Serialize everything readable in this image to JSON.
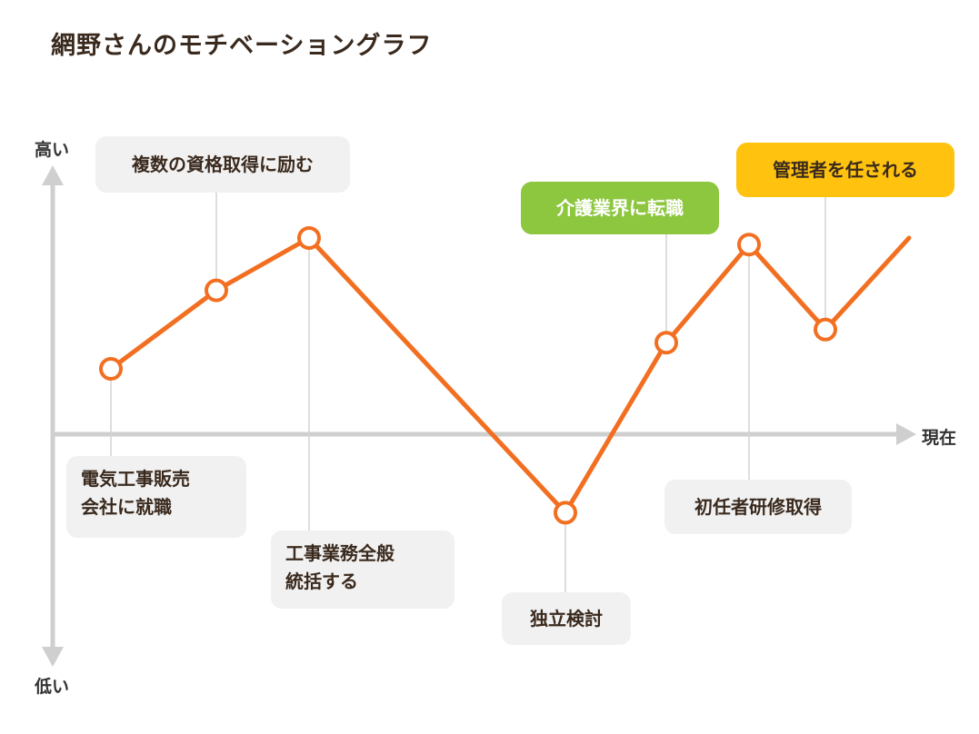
{
  "title": "網野さんのモチベーショングラフ",
  "colors": {
    "line": "#f26f21",
    "axis": "#cfcfcf",
    "connector": "#d3d3d3",
    "label_bg": "#f1f1f1",
    "label_green": "#8dc63f",
    "label_yellow": "#ffc20e",
    "text": "#3a2a1e"
  },
  "chart_data": {
    "type": "line",
    "title": "網野さんのモチベーショングラフ",
    "y_axis": {
      "top_label": "高い",
      "bottom_label": "低い"
    },
    "x_axis": {
      "end_label": "現在"
    },
    "points": [
      {
        "y": 1.0,
        "label": "電気工事販売\n会社に就職",
        "style": "gray"
      },
      {
        "y": 2.2,
        "label": "複数の資格取得に励む",
        "style": "gray"
      },
      {
        "y": 3.0,
        "label": "工事業務全般\n統括する",
        "style": "gray"
      },
      {
        "y": -1.2,
        "label": "独立検討",
        "style": "gray"
      },
      {
        "y": 1.4,
        "label": "介護業界に転職",
        "style": "green"
      },
      {
        "y": 2.9,
        "label": "初任者研修取得",
        "style": "gray"
      },
      {
        "y": 1.6,
        "label": "管理者を任される",
        "style": "yellow"
      }
    ],
    "end_point": {
      "y": 3.0
    },
    "ylim": [
      -3.5,
      4.0
    ]
  }
}
